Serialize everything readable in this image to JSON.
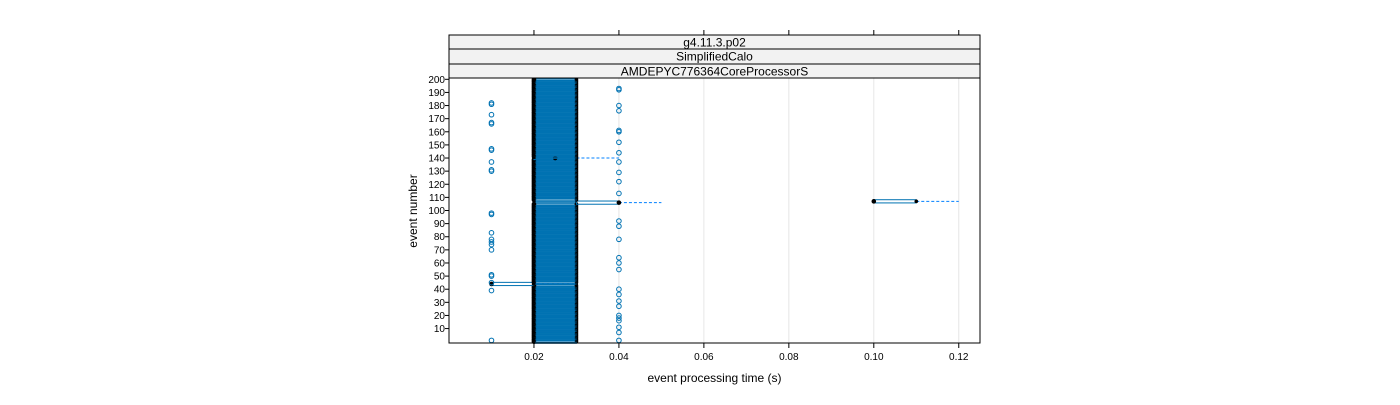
{
  "chart_data": {
    "type": "box",
    "orientation": "horizontal",
    "strips": [
      "g4.11.3.p02",
      "SimplifiedCalo",
      "AMDEPYC776364CoreProcessorS"
    ],
    "xlabel": "event processing time (s)",
    "ylabel": "event number",
    "xlim": [
      0.0,
      0.125
    ],
    "ylim": [
      -1,
      201
    ],
    "x_ticks": [
      0.02,
      0.04,
      0.06,
      0.08,
      0.1,
      0.12
    ],
    "x_tick_labels": [
      "0.02",
      "0.04",
      "0.06",
      "0.08",
      "0.10",
      "0.12"
    ],
    "y_ticks": [
      10,
      20,
      30,
      40,
      50,
      60,
      70,
      80,
      90,
      100,
      110,
      120,
      130,
      140,
      150,
      160,
      170,
      180,
      190,
      200
    ],
    "events_from": 0,
    "events_to": 200,
    "typical_box": {
      "min": 0.02,
      "q1": 0.02,
      "median": 0.02,
      "q3": 0.03,
      "max": 0.03
    },
    "special_events": [
      {
        "event": 107,
        "min": 0.1,
        "q1": 0.1,
        "median": 0.1,
        "q3": 0.11,
        "max": 0.12
      },
      {
        "event": 140,
        "min": 0.02,
        "q1": 0.02,
        "median": 0.025,
        "q3": 0.03,
        "max": 0.04
      },
      {
        "event": 106,
        "min": 0.03,
        "q1": 0.03,
        "median": 0.04,
        "q3": 0.04,
        "max": 0.05
      },
      {
        "event": 44,
        "min": 0.01,
        "q1": 0.01,
        "median": 0.01,
        "q3": 0.02,
        "max": 0.03
      }
    ],
    "outliers": [
      {
        "event": 1,
        "x": 0.01
      },
      {
        "event": 1,
        "x": 0.04
      },
      {
        "event": 7,
        "x": 0.04
      },
      {
        "event": 11,
        "x": 0.04
      },
      {
        "event": 16,
        "x": 0.04
      },
      {
        "event": 18,
        "x": 0.04
      },
      {
        "event": 20,
        "x": 0.04
      },
      {
        "event": 27,
        "x": 0.04
      },
      {
        "event": 31,
        "x": 0.04
      },
      {
        "event": 36,
        "x": 0.04
      },
      {
        "event": 39,
        "x": 0.01
      },
      {
        "event": 40,
        "x": 0.04
      },
      {
        "event": 45,
        "x": 0.01
      },
      {
        "event": 50,
        "x": 0.01
      },
      {
        "event": 51,
        "x": 0.01
      },
      {
        "event": 55,
        "x": 0.04
      },
      {
        "event": 60,
        "x": 0.04
      },
      {
        "event": 64,
        "x": 0.04
      },
      {
        "event": 70,
        "x": 0.01
      },
      {
        "event": 74,
        "x": 0.01
      },
      {
        "event": 76,
        "x": 0.01
      },
      {
        "event": 78,
        "x": 0.01
      },
      {
        "event": 78,
        "x": 0.04
      },
      {
        "event": 83,
        "x": 0.01
      },
      {
        "event": 88,
        "x": 0.04
      },
      {
        "event": 92,
        "x": 0.04
      },
      {
        "event": 97,
        "x": 0.01
      },
      {
        "event": 98,
        "x": 0.01
      },
      {
        "event": 113,
        "x": 0.04
      },
      {
        "event": 122,
        "x": 0.04
      },
      {
        "event": 129,
        "x": 0.04
      },
      {
        "event": 130,
        "x": 0.01
      },
      {
        "event": 131,
        "x": 0.01
      },
      {
        "event": 137,
        "x": 0.01
      },
      {
        "event": 137,
        "x": 0.04
      },
      {
        "event": 144,
        "x": 0.04
      },
      {
        "event": 146,
        "x": 0.01
      },
      {
        "event": 147,
        "x": 0.01
      },
      {
        "event": 152,
        "x": 0.04
      },
      {
        "event": 160,
        "x": 0.04
      },
      {
        "event": 161,
        "x": 0.04
      },
      {
        "event": 166,
        "x": 0.01
      },
      {
        "event": 167,
        "x": 0.01
      },
      {
        "event": 173,
        "x": 0.01
      },
      {
        "event": 176,
        "x": 0.04
      },
      {
        "event": 180,
        "x": 0.04
      },
      {
        "event": 181,
        "x": 0.01
      },
      {
        "event": 182,
        "x": 0.01
      },
      {
        "event": 192,
        "x": 0.04
      },
      {
        "event": 193,
        "x": 0.04
      }
    ],
    "grid": true
  }
}
